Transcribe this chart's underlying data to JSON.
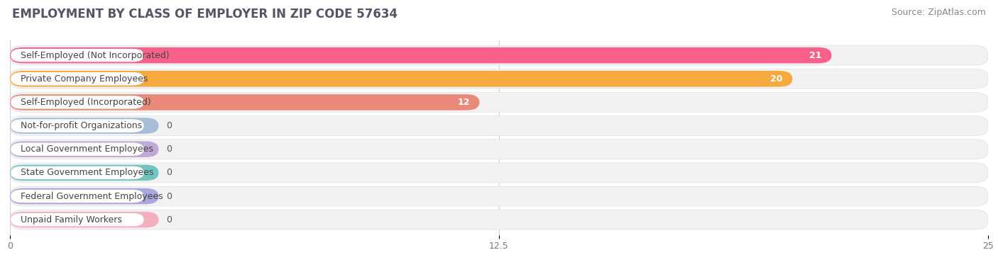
{
  "title": "Employment by Class of Employer in Zip Code 57634",
  "title_display": "EMPLOYMENT BY CLASS OF EMPLOYER IN ZIP CODE 57634",
  "source": "Source: ZipAtlas.com",
  "categories": [
    "Self-Employed (Not Incorporated)",
    "Private Company Employees",
    "Self-Employed (Incorporated)",
    "Not-for-profit Organizations",
    "Local Government Employees",
    "State Government Employees",
    "Federal Government Employees",
    "Unpaid Family Workers"
  ],
  "values": [
    21,
    20,
    12,
    0,
    0,
    0,
    0,
    0
  ],
  "bar_colors": [
    "#F7618A",
    "#F5A93E",
    "#E8897A",
    "#A8BDD8",
    "#C0A8D8",
    "#72C4BE",
    "#A8A8DC",
    "#F5B0C0"
  ],
  "xlim": [
    0,
    25
  ],
  "xticks": [
    0,
    12.5,
    25
  ],
  "background_color": "#FFFFFF",
  "row_bg_color": "#F2F2F2",
  "title_fontsize": 12,
  "source_fontsize": 9,
  "label_fontsize": 9,
  "value_fontsize": 9
}
